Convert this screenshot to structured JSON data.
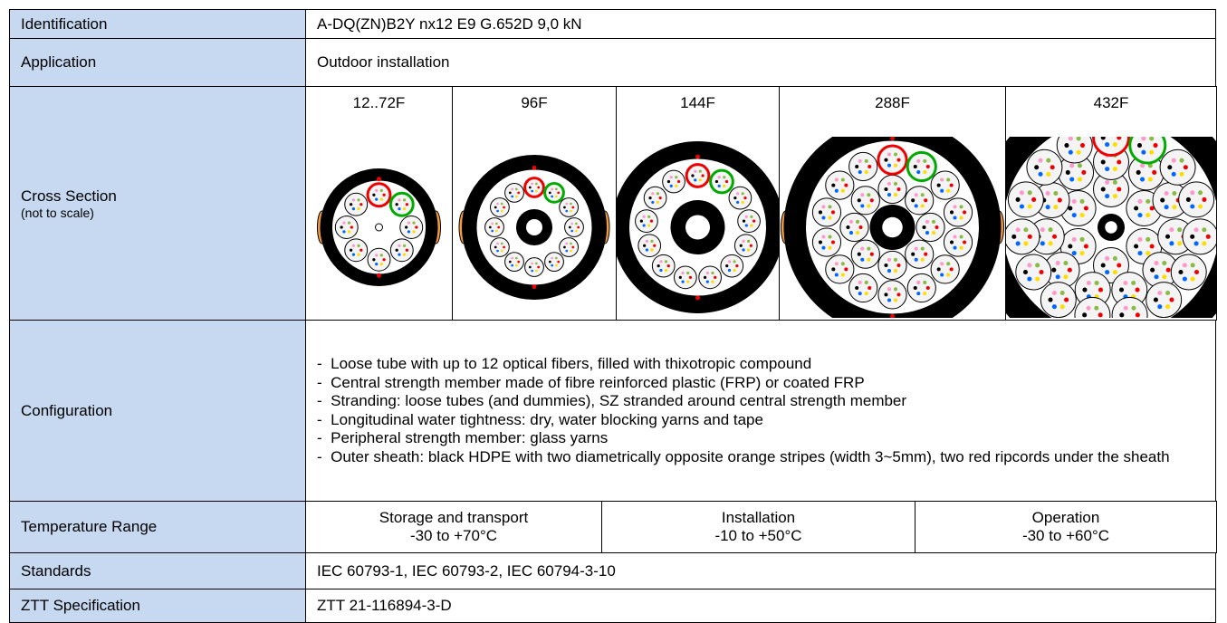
{
  "table": {
    "rows": [
      {
        "label": "Identification",
        "value": "A-DQ(ZN)B2Y nx12 E9 G.652D 9,0 kN"
      },
      {
        "label": "Application",
        "value": "Outdoor installation"
      },
      {
        "label": "Cross Section",
        "note": "(not to scale)",
        "columns": [
          "12..72F",
          "96F",
          "144F",
          "288F",
          "432F"
        ]
      },
      {
        "label": "Configuration",
        "items": [
          "Loose tube with up to 12 optical fibers, filled with thixotropic compound",
          "Central strength member made of fibre reinforced plastic (FRP) or coated FRP",
          "Stranding: loose tubes (and dummies), SZ stranded around central strength member",
          "Longitudinal water tightness: dry, water blocking yarns and tape",
          "Peripheral strength member: glass yarns",
          "Outer sheath: black HDPE with two diametrically opposite orange stripes (width 3~5mm), two red ripcords under the sheath"
        ]
      },
      {
        "label": "Temperature Range",
        "cells": [
          {
            "title": "Storage and transport",
            "range": "-30 to +70°C"
          },
          {
            "title": "Installation",
            "range": "-10 to +50°C"
          },
          {
            "title": "Operation",
            "range": "-30 to +60°C"
          }
        ]
      },
      {
        "label": "Standards",
        "value": "IEC 60793-1, IEC 60793-2, IEC 60794-3-10"
      },
      {
        "label": "ZTT Specification",
        "value": "ZTT 21-116894-3-D"
      }
    ]
  }
}
